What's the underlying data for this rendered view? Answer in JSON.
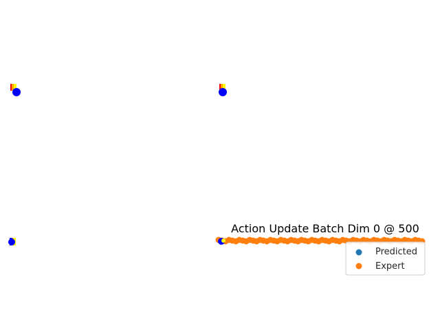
{
  "figure": {
    "background": "#ffffff"
  },
  "chart_data": [
    {
      "type": "scatter",
      "panel": "top-left",
      "title": "",
      "markers": [
        {
          "color": "#ff0000",
          "shape": "square"
        },
        {
          "color": "#ffa500",
          "shape": "square"
        },
        {
          "color": "#ffff00",
          "shape": "square"
        },
        {
          "color": "#0000ff",
          "shape": "circle"
        }
      ],
      "axes_visible": false
    },
    {
      "type": "scatter",
      "panel": "top-right",
      "title": "",
      "markers": [
        {
          "color": "#ff0000",
          "shape": "square"
        },
        {
          "color": "#ffa500",
          "shape": "square"
        },
        {
          "color": "#ffff00",
          "shape": "square"
        },
        {
          "color": "#0000ff",
          "shape": "circle"
        }
      ],
      "axes_visible": false
    },
    {
      "type": "scatter",
      "panel": "bottom-left",
      "title": "",
      "markers": [
        {
          "color": "#ffa500",
          "shape": "square"
        },
        {
          "color": "#ffff00",
          "shape": "square"
        },
        {
          "color": "#0000ff",
          "shape": "circle"
        }
      ],
      "axes_visible": false
    },
    {
      "type": "scatter",
      "panel": "bottom-right",
      "title": "Action Update Batch Dim 0 @ 500",
      "series": [
        {
          "name": "Predicted",
          "color": "#1f77b4"
        },
        {
          "name": "Expert",
          "color": "#ff7f0e"
        }
      ],
      "legend": {
        "placement": "lower-right",
        "entries": [
          {
            "label": "Predicted",
            "color": "#1f77b4"
          },
          {
            "label": "Expert",
            "color": "#ff7f0e"
          }
        ]
      },
      "axes_visible": false
    }
  ]
}
